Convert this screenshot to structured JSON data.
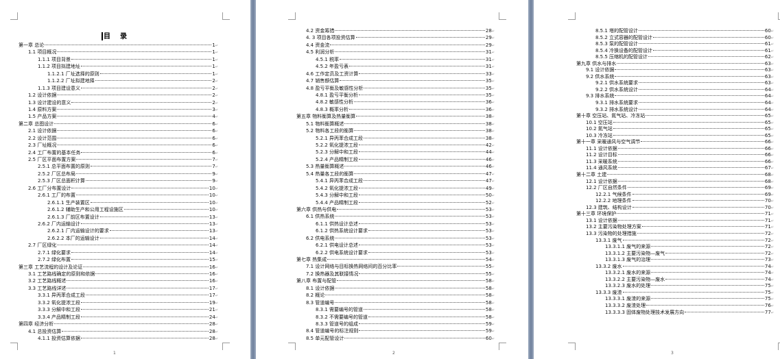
{
  "document": {
    "toc_title": "目录",
    "pages": [
      {
        "page_number": "1",
        "entries": [
          {
            "level": 1,
            "title": "第一章  总论",
            "page": "1"
          },
          {
            "level": 2,
            "title": "1.1 项目概况",
            "page": "1"
          },
          {
            "level": 3,
            "title": "1.1.1 项目背景",
            "page": "1"
          },
          {
            "level": 3,
            "title": "1.1.2 项目拟建地址",
            "page": "1"
          },
          {
            "level": 4,
            "title": "1.1.2.1 厂址选择的原则",
            "page": "1"
          },
          {
            "level": 4,
            "title": "1.1.2.2 厂址拟建地择",
            "page": "2"
          },
          {
            "level": 3,
            "title": "1.1.3 项目建设意义",
            "page": "2"
          },
          {
            "level": 2,
            "title": "1.2 设计依据",
            "page": "2"
          },
          {
            "level": 2,
            "title": "1.3 设计建设的意义",
            "page": "2"
          },
          {
            "level": 2,
            "title": "1.4 原料方案",
            "page": "3"
          },
          {
            "level": 2,
            "title": "1.5 产品方案",
            "page": "4"
          },
          {
            "level": 1,
            "title": "第二章  总图设计",
            "page": "6"
          },
          {
            "level": 2,
            "title": "2.1 设计依据",
            "page": "6"
          },
          {
            "level": 2,
            "title": "2.2 设计范围",
            "page": "6"
          },
          {
            "level": 2,
            "title": "2.3 厂址概况",
            "page": "6"
          },
          {
            "level": 2,
            "title": "2.4 工厂布置的基本任务",
            "page": "6"
          },
          {
            "level": 2,
            "title": "2.5 厂区平面布置方案",
            "page": "7"
          },
          {
            "level": 3,
            "title": "2.5.1 总平面布置的原则",
            "page": "7"
          },
          {
            "level": 3,
            "title": "2.5.2 厂区总布局",
            "page": "9"
          },
          {
            "level": 3,
            "title": "2.5.3 厂区总面积计算",
            "page": "9"
          },
          {
            "level": 2,
            "title": "2.6 工厂分布置设计",
            "page": "10"
          },
          {
            "level": 3,
            "title": "2.6.1 工厂的布置",
            "page": "10"
          },
          {
            "level": 4,
            "title": "2.6.1.1 生产装置区",
            "page": "10"
          },
          {
            "level": 4,
            "title": "2.6.1.2 辅助生产和公用工程设施区",
            "page": "10"
          },
          {
            "level": 4,
            "title": "2.6.1.3 厂前区布置设计",
            "page": "13"
          },
          {
            "level": 3,
            "title": "2.6.2 厂内运输设计",
            "page": "13"
          },
          {
            "level": 4,
            "title": "2.6.2.1 厂内运输设计的要求",
            "page": "13"
          },
          {
            "level": 4,
            "title": "2.6.2.2 本厂的运输设计",
            "page": "14"
          },
          {
            "level": 2,
            "title": "2.7 厂区绿化",
            "page": "14"
          },
          {
            "level": 3,
            "title": "2.7.1 绿化要求",
            "page": "14"
          },
          {
            "level": 3,
            "title": "2.7.2 绿化布置",
            "page": "15"
          },
          {
            "level": 1,
            "title": "第三章 工艺流程的设计及论证",
            "page": "16"
          },
          {
            "level": 2,
            "title": "3.1 工艺路线确定的原则和依据",
            "page": "16"
          },
          {
            "level": 2,
            "title": "3.2 工艺路线概述",
            "page": "16"
          },
          {
            "level": 2,
            "title": "3.3 工艺路线详述",
            "page": "17"
          },
          {
            "level": 3,
            "title": "3.3.1 异丙苯合成工段",
            "page": "17"
          },
          {
            "level": 3,
            "title": "3.3.2 氧化提浓工段",
            "page": "19"
          },
          {
            "level": 3,
            "title": "3.3.3 分解中和工段",
            "page": "21"
          },
          {
            "level": 3,
            "title": "3.3.4 产品精制工段",
            "page": "24"
          },
          {
            "level": 1,
            "title": "第四章  经济分析",
            "page": "28"
          },
          {
            "level": 2,
            "title": "4.1 总投资估算",
            "page": "28"
          },
          {
            "level": 3,
            "title": "4.1.1 投资估算依据",
            "page": "28"
          }
        ]
      },
      {
        "page_number": "2",
        "entries": [
          {
            "level": 2,
            "title": "4.2 资金筹措",
            "page": "28"
          },
          {
            "level": 2,
            "title": "4. 3 项目各项投资估算",
            "page": "29"
          },
          {
            "level": 2,
            "title": "4.4 资金流",
            "page": "29"
          },
          {
            "level": 2,
            "title": "4.5 利润分析",
            "page": "31"
          },
          {
            "level": 3,
            "title": "4.5.1 税率",
            "page": "31"
          },
          {
            "level": 3,
            "title": "4.5.2 年盈亏表",
            "page": "31"
          },
          {
            "level": 2,
            "title": "4.6 工作定员及工资计算",
            "page": "33"
          },
          {
            "level": 2,
            "title": "4.7 销售额估算",
            "page": "35"
          },
          {
            "level": 2,
            "title": "4.8 盈亏平衡及敏感性分析",
            "page": "35"
          },
          {
            "level": 3,
            "title": "4.8.1 盈亏平衡分析",
            "page": "35"
          },
          {
            "level": 3,
            "title": "4.8.2 敏感性分析",
            "page": "36"
          },
          {
            "level": 3,
            "title": "4.8.3 概率分析",
            "page": "36"
          },
          {
            "level": 1,
            "title": "第五章  物料衡算及热量衡算",
            "page": "38"
          },
          {
            "level": 2,
            "title": "5.1 物料衡算概述",
            "page": "38"
          },
          {
            "level": 2,
            "title": "5.2 物料各工段的衡算",
            "page": "38"
          },
          {
            "level": 3,
            "title": "5.2.1 异丙苯合成工段",
            "page": "38"
          },
          {
            "level": 3,
            "title": "5.2.2 氧化提浓工段",
            "page": "42"
          },
          {
            "level": 3,
            "title": "5.2.3 分解中和工段",
            "page": "44"
          },
          {
            "level": 3,
            "title": "5.2.4 产品精制工段",
            "page": "46"
          },
          {
            "level": 2,
            "title": "5.3 热量衡算概述",
            "page": "46"
          },
          {
            "level": 2,
            "title": "5.4 热量各工段的衡算",
            "page": "47"
          },
          {
            "level": 3,
            "title": "5.4.1 异丙苯合成工段",
            "page": "47"
          },
          {
            "level": 3,
            "title": "5.4.2 氧化提浓工段",
            "page": "49"
          },
          {
            "level": 3,
            "title": "5.4.3 分解中和工段",
            "page": "50"
          },
          {
            "level": 3,
            "title": "5.4.4 产品精制工段",
            "page": "52"
          },
          {
            "level": 1,
            "title": "第六章  供热与供电",
            "page": "53"
          },
          {
            "level": 2,
            "title": "6.1 供热系统",
            "page": "53"
          },
          {
            "level": 3,
            "title": "6.1.1 供热设计总述",
            "page": "53"
          },
          {
            "level": 3,
            "title": "6.1.2 供热系统设计要求",
            "page": "53"
          },
          {
            "level": 2,
            "title": "6.2 供电系统",
            "page": "53"
          },
          {
            "level": 3,
            "title": "6.2.1 供电设计总述",
            "page": "53"
          },
          {
            "level": 3,
            "title": "6.2.2 供电系统设计要求",
            "page": "53"
          },
          {
            "level": 1,
            "title": "第七章 热集成",
            "page": "54"
          },
          {
            "level": 2,
            "title": "7.1 设计网络与目标换热网络间的百分比率",
            "page": "55"
          },
          {
            "level": 2,
            "title": "7.2 换热器及其联接情况",
            "page": "55"
          },
          {
            "level": 1,
            "title": "第八章  布置与配管",
            "page": "58"
          },
          {
            "level": 2,
            "title": "8.1 设计依据",
            "page": "58"
          },
          {
            "level": 2,
            "title": "8.2 概论",
            "page": "58"
          },
          {
            "level": 2,
            "title": "8.3 管道编号",
            "page": "58"
          },
          {
            "level": 3,
            "title": "8.3.1 需要编号的管道",
            "page": "58"
          },
          {
            "level": 3,
            "title": "8.3.2 不需要编号的管道",
            "page": "58"
          },
          {
            "level": 3,
            "title": "8.3.3 管道号的组成",
            "page": "59"
          },
          {
            "level": 2,
            "title": "8.4 管道编号的标注规则",
            "page": "59"
          },
          {
            "level": 2,
            "title": "8.5 单元配管设计",
            "page": "60"
          }
        ]
      },
      {
        "page_number": "3",
        "entries": [
          {
            "level": 3,
            "title": "8.5.1 塔的配管设计",
            "page": "60"
          },
          {
            "level": 3,
            "title": "8.5.2 立式容器的配管设计",
            "page": "60"
          },
          {
            "level": 3,
            "title": "8.5.3 泵的配管设计",
            "page": "61"
          },
          {
            "level": 3,
            "title": "8.5.4 冷换设备的配管设计",
            "page": "61"
          },
          {
            "level": 3,
            "title": "8.5.5 压缩机的配管设计",
            "page": "62"
          },
          {
            "level": 1,
            "title": "第九章  供水与排水",
            "page": "63"
          },
          {
            "level": 2,
            "title": "9.1 设计依据",
            "page": "63"
          },
          {
            "level": 2,
            "title": "9.2 供水系统",
            "page": "63"
          },
          {
            "level": 3,
            "title": "9.2.1 供水系统要求",
            "page": "63"
          },
          {
            "level": 3,
            "title": "9.2.2 供水系统设计",
            "page": "64"
          },
          {
            "level": 2,
            "title": "9.3 排水系统",
            "page": "64"
          },
          {
            "level": 3,
            "title": "9.3.1 排水系统要求",
            "page": "64"
          },
          {
            "level": 3,
            "title": "9.3.2 排水系统设计",
            "page": "64"
          },
          {
            "level": 1,
            "title": "第十章 空压站、氮气站、冷冻站",
            "page": "65"
          },
          {
            "level": 2,
            "title": "10.1 空压站",
            "page": "65"
          },
          {
            "level": 2,
            "title": "10.2 氮气站",
            "page": "65"
          },
          {
            "level": 2,
            "title": "10.3 冷冻站",
            "page": "65"
          },
          {
            "level": 1,
            "title": "第十一章 采暖通风与空气调节",
            "page": "66"
          },
          {
            "level": 2,
            "title": "11.1 设计依据",
            "page": "66"
          },
          {
            "level": 2,
            "title": "11.2 设计目标",
            "page": "66"
          },
          {
            "level": 2,
            "title": "11.3 采暖系统",
            "page": "66"
          },
          {
            "level": 2,
            "title": "11.4 通风系统",
            "page": "67"
          },
          {
            "level": 1,
            "title": "第十二章 土建",
            "page": "68"
          },
          {
            "level": 2,
            "title": "12.1 设计依据",
            "page": "68"
          },
          {
            "level": 2,
            "title": "12.2 厂区自然条件",
            "page": "69"
          },
          {
            "level": 3,
            "title": "12.2.1 气候条件",
            "page": "69"
          },
          {
            "level": 3,
            "title": "12.2.2 地理条件",
            "page": "70"
          },
          {
            "level": 2,
            "title": "12.3 建筑、结构设计",
            "page": "70"
          },
          {
            "level": 1,
            "title": "第十三章  环境保护",
            "page": "71"
          },
          {
            "level": 2,
            "title": "13.1 设计依据",
            "page": "71"
          },
          {
            "level": 2,
            "title": "13.2 主要污染物处理方案",
            "page": "71"
          },
          {
            "level": 2,
            "title": "13.3 污染物的处理措施",
            "page": "72"
          },
          {
            "level": 3,
            "title": "13.3.1 废气",
            "page": "72"
          },
          {
            "level": 4,
            "title": "13.3.1.1 废气的来源",
            "page": "72"
          },
          {
            "level": 4,
            "title": "13.3.1.2 主要污染物—废气",
            "page": "72"
          },
          {
            "level": 4,
            "title": "13.3.1.3 废气的治理",
            "page": "73"
          },
          {
            "level": 3,
            "title": "13.3.2 废水",
            "page": "74"
          },
          {
            "level": 4,
            "title": "13.3.2.1 废水的来源",
            "page": "74"
          },
          {
            "level": 4,
            "title": "13.3.2.2 主要污染物—废水",
            "page": "74"
          },
          {
            "level": 4,
            "title": "13.3.2.3 废水的处理",
            "page": "75"
          },
          {
            "level": 3,
            "title": "13.3.3 废渣",
            "page": "75"
          },
          {
            "level": 4,
            "title": "13.3.3.1 废渣的来源",
            "page": "75"
          },
          {
            "level": 4,
            "title": "13.3.3.2 废渣处理",
            "page": "76"
          },
          {
            "level": 4,
            "title": "13.3.3.3 固体废物处理技术发展方向",
            "page": "77"
          }
        ]
      }
    ]
  }
}
